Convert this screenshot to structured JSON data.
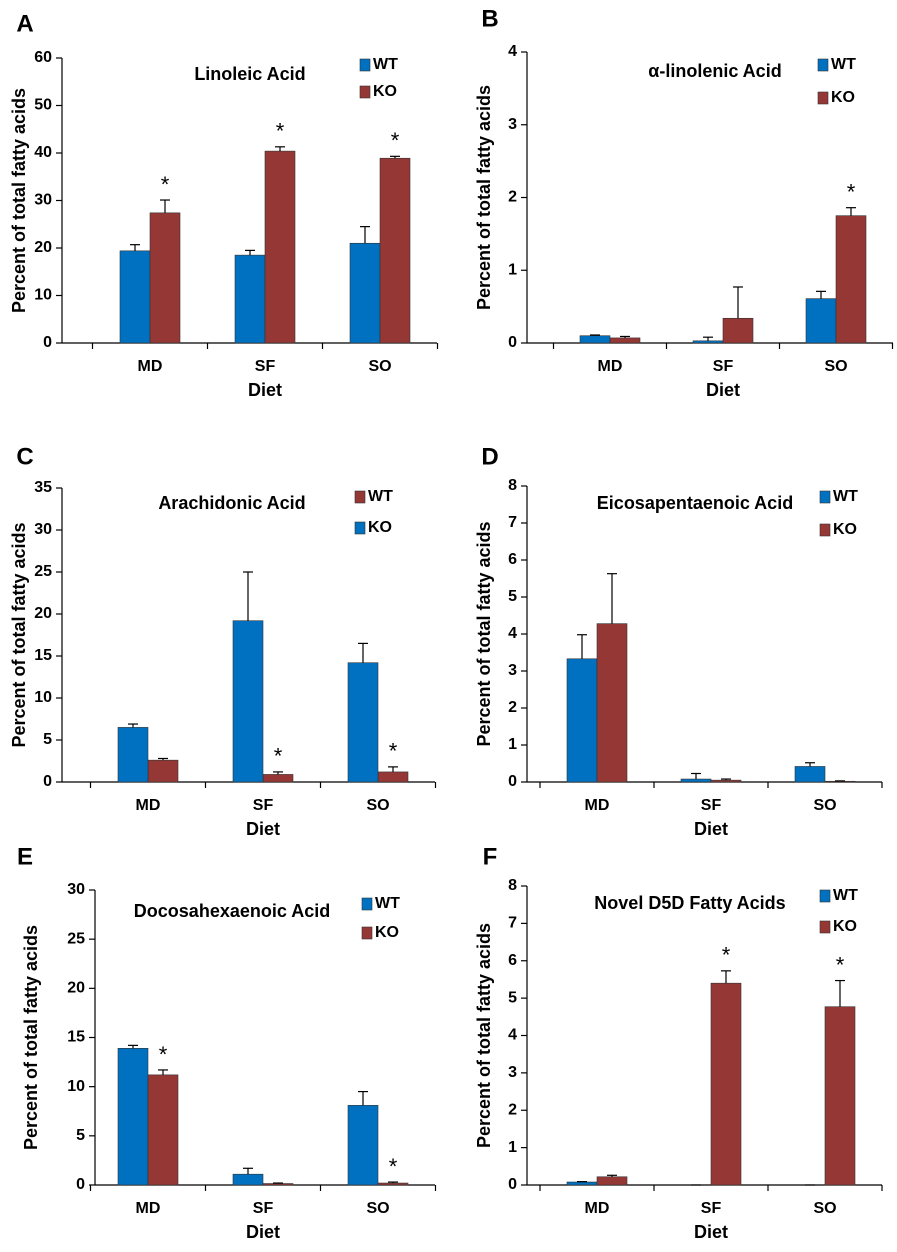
{
  "chart_data": [
    {
      "type": "bar",
      "panel": "A",
      "title": "Linoleic Acid",
      "xlabel": "Diet",
      "ylabel": "Percent of total fatty acids",
      "categories": [
        "MD",
        "SF",
        "SO"
      ],
      "ylim": [
        0,
        60
      ],
      "yticks": [
        0,
        10,
        20,
        30,
        40,
        50,
        60
      ],
      "series": [
        {
          "name": "WT",
          "color": "#0070c0",
          "values": [
            19.4,
            18.5,
            21.0
          ],
          "errors": [
            1.3,
            1.0,
            3.5
          ],
          "annotations": [
            null,
            null,
            null
          ]
        },
        {
          "name": "KO",
          "color": "#953735",
          "values": [
            27.4,
            40.4,
            38.9
          ],
          "errors": [
            2.7,
            0.9,
            0.4
          ],
          "annotations": [
            "*",
            "*",
            "*"
          ]
        }
      ]
    },
    {
      "type": "bar",
      "panel": "B",
      "title": "α-linolenic Acid",
      "xlabel": "Diet",
      "ylabel": "Percent of total fatty acids",
      "categories": [
        "MD",
        "SF",
        "SO"
      ],
      "ylim": [
        0,
        4
      ],
      "yticks": [
        0,
        1,
        2,
        3,
        4
      ],
      "series": [
        {
          "name": "WT",
          "color": "#0070c0",
          "values": [
            0.1,
            0.03,
            0.61
          ],
          "errors": [
            0.01,
            0.05,
            0.1
          ],
          "annotations": [
            null,
            null,
            null
          ]
        },
        {
          "name": "KO",
          "color": "#953735",
          "values": [
            0.07,
            0.34,
            1.75
          ],
          "errors": [
            0.02,
            0.43,
            0.11
          ],
          "annotations": [
            null,
            null,
            "*"
          ]
        }
      ]
    },
    {
      "type": "bar",
      "panel": "C",
      "title": "Arachidonic Acid",
      "xlabel": "Diet",
      "ylabel": "Percent of total fatty acids",
      "categories": [
        "MD",
        "SF",
        "SO"
      ],
      "ylim": [
        0,
        35
      ],
      "yticks": [
        0,
        5,
        10,
        15,
        20,
        25,
        30,
        35
      ],
      "series": [
        {
          "name": "WT",
          "color": "#953735",
          "values": [
            2.6,
            0.9,
            1.2
          ],
          "errors": [
            0.2,
            0.3,
            0.6
          ],
          "annotations": [
            null,
            "*",
            "*"
          ]
        },
        {
          "name": "KO",
          "color": "#0070c0",
          "values": [
            6.5,
            19.2,
            14.2
          ],
          "errors": [
            0.4,
            5.8,
            2.3
          ],
          "annotations": [
            null,
            null,
            null
          ]
        }
      ]
    },
    {
      "type": "bar",
      "panel": "D",
      "title": "Eicosapentaenoic Acid",
      "xlabel": "Diet",
      "ylabel": "Percent of total fatty acids",
      "categories": [
        "MD",
        "SF",
        "SO"
      ],
      "ylim": [
        0,
        8
      ],
      "yticks": [
        0,
        1,
        2,
        3,
        4,
        5,
        6,
        7,
        8
      ],
      "series": [
        {
          "name": "WT",
          "color": "#0070c0",
          "values": [
            3.33,
            0.08,
            0.42
          ],
          "errors": [
            0.65,
            0.15,
            0.1
          ],
          "annotations": [
            null,
            null,
            null
          ]
        },
        {
          "name": "KO",
          "color": "#953735",
          "values": [
            4.28,
            0.05,
            0.02
          ],
          "errors": [
            1.35,
            0.03,
            0.01
          ],
          "annotations": [
            null,
            null,
            null
          ]
        }
      ]
    },
    {
      "type": "bar",
      "panel": "E",
      "title": "Docosahexaenoic Acid",
      "xlabel": "Diet",
      "ylabel": "Percent of total fatty acids",
      "categories": [
        "MD",
        "SF",
        "SO"
      ],
      "ylim": [
        0,
        30
      ],
      "yticks": [
        0,
        5,
        10,
        15,
        20,
        25,
        30
      ],
      "series": [
        {
          "name": "WT",
          "color": "#0070c0",
          "values": [
            13.9,
            1.1,
            8.1
          ],
          "errors": [
            0.3,
            0.6,
            1.4
          ],
          "annotations": [
            null,
            null,
            null
          ]
        },
        {
          "name": "KO",
          "color": "#953735",
          "values": [
            11.2,
            0.15,
            0.2
          ],
          "errors": [
            0.5,
            0.05,
            0.1
          ],
          "annotations": [
            "*",
            null,
            "*"
          ]
        }
      ]
    },
    {
      "type": "bar",
      "panel": "F",
      "title": "Novel D5D Fatty Acids",
      "xlabel": "Diet",
      "ylabel": "Percent of total fatty acids",
      "categories": [
        "MD",
        "SF",
        "SO"
      ],
      "ylim": [
        0,
        8
      ],
      "yticks": [
        0,
        1,
        2,
        3,
        4,
        5,
        6,
        7,
        8
      ],
      "series": [
        {
          "name": "WT",
          "color": "#0070c0",
          "values": [
            0.08,
            0,
            0
          ],
          "errors": [
            0.01,
            0,
            0
          ],
          "annotations": [
            null,
            null,
            null
          ]
        },
        {
          "name": "KO",
          "color": "#953735",
          "values": [
            0.22,
            5.4,
            4.77
          ],
          "errors": [
            0.04,
            0.33,
            0.7
          ],
          "annotations": [
            null,
            "*",
            "*"
          ]
        }
      ]
    }
  ]
}
